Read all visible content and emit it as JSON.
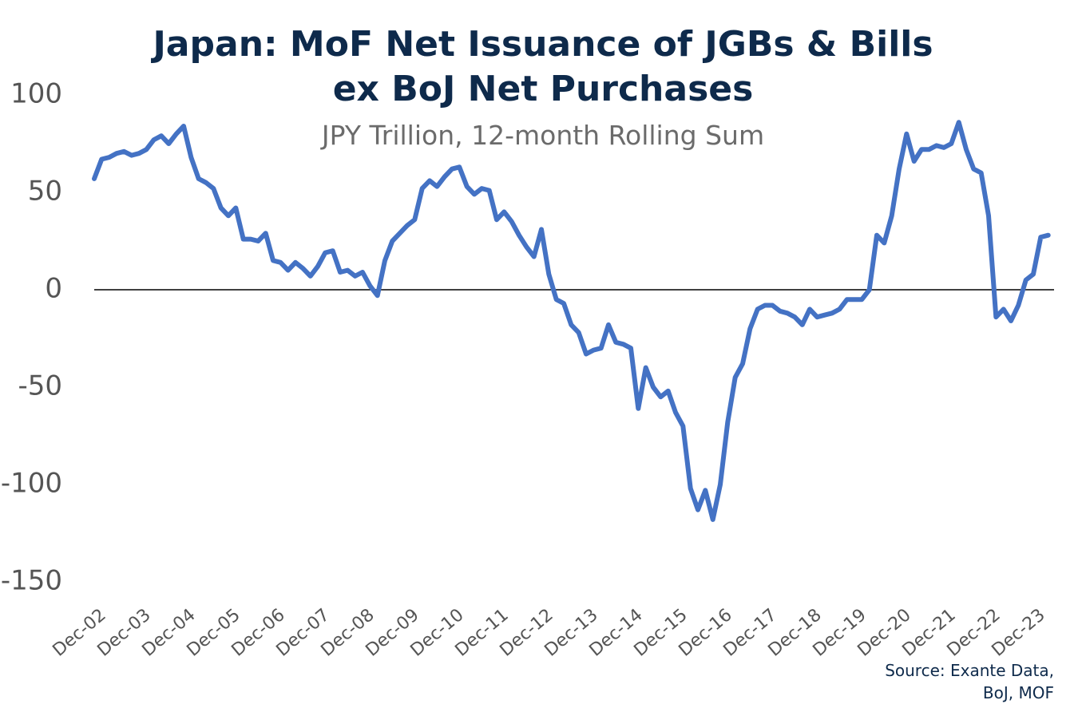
{
  "chart_data": {
    "type": "line",
    "title": "Japan: MoF Net Issuance of JGBs & Bills ex BoJ Net Purchases",
    "subtitle": "JPY Trillion, 12-month Rolling Sum",
    "source": "Source: Exante Data, BoJ, MOF",
    "color": "#4472c4",
    "categories": [
      "Dec-02",
      null,
      null,
      null,
      null,
      null,
      "Dec-03",
      null,
      null,
      null,
      null,
      null,
      "Dec-04",
      null,
      null,
      null,
      null,
      null,
      "Dec-05",
      null,
      null,
      null,
      null,
      null,
      "Dec-06",
      null,
      null,
      null,
      null,
      null,
      "Dec-07",
      null,
      null,
      null,
      null,
      null,
      "Dec-08",
      null,
      null,
      null,
      null,
      null,
      "Dec-09",
      null,
      null,
      null,
      null,
      null,
      "Dec-10",
      null,
      null,
      null,
      null,
      null,
      "Dec-11",
      null,
      null,
      null,
      null,
      null,
      "Dec-12",
      null,
      null,
      null,
      null,
      null,
      "Dec-13",
      null,
      null,
      null,
      null,
      null,
      "Dec-14",
      null,
      null,
      null,
      null,
      null,
      "Dec-15",
      null,
      null,
      null,
      null,
      null,
      "Dec-16",
      null,
      null,
      null,
      null,
      null,
      "Dec-17",
      null,
      null,
      null,
      null,
      null,
      "Dec-18",
      null,
      null,
      null,
      null,
      null,
      "Dec-19",
      null,
      null,
      null,
      null,
      null,
      "Dec-20",
      null,
      null,
      null,
      null,
      null,
      "Dec-21",
      null,
      null,
      null,
      null,
      null,
      "Dec-22",
      null,
      null,
      null,
      null,
      null,
      "Dec-23",
      null,
      null
    ],
    "values": [
      57,
      67,
      68,
      70,
      71,
      69,
      70,
      72,
      77,
      79,
      75,
      80,
      84,
      68,
      57,
      55,
      52,
      42,
      38,
      42,
      26,
      26,
      25,
      29,
      15,
      14,
      10,
      14,
      11,
      7,
      12,
      19,
      20,
      9,
      10,
      7,
      9,
      2,
      -3,
      15,
      25,
      29,
      33,
      36,
      52,
      56,
      53,
      58,
      62,
      63,
      53,
      49,
      52,
      51,
      36,
      40,
      35,
      28,
      22,
      17,
      31,
      8,
      -5,
      -7,
      -18,
      -22,
      -33,
      -31,
      -30,
      -18,
      -27,
      -28,
      -30,
      -61,
      -40,
      -50,
      -55,
      -52,
      -63,
      -70,
      -102,
      -113,
      -103,
      -118,
      -100,
      -68,
      -45,
      -38,
      -20,
      -10,
      -8,
      -8,
      -11,
      -12,
      -14,
      -18,
      -10,
      -14,
      -13,
      -12,
      -10,
      -5,
      -5,
      -5,
      0,
      28,
      24,
      38,
      62,
      80,
      66,
      72,
      72,
      74,
      73,
      75,
      86,
      72,
      62,
      60,
      38,
      -14,
      -10,
      -16,
      -8,
      5,
      8,
      27,
      28
    ],
    "ylim": [
      -150,
      100
    ],
    "yticks": [
      -150,
      -100,
      -50,
      0,
      50,
      100
    ],
    "zero_line": true
  }
}
